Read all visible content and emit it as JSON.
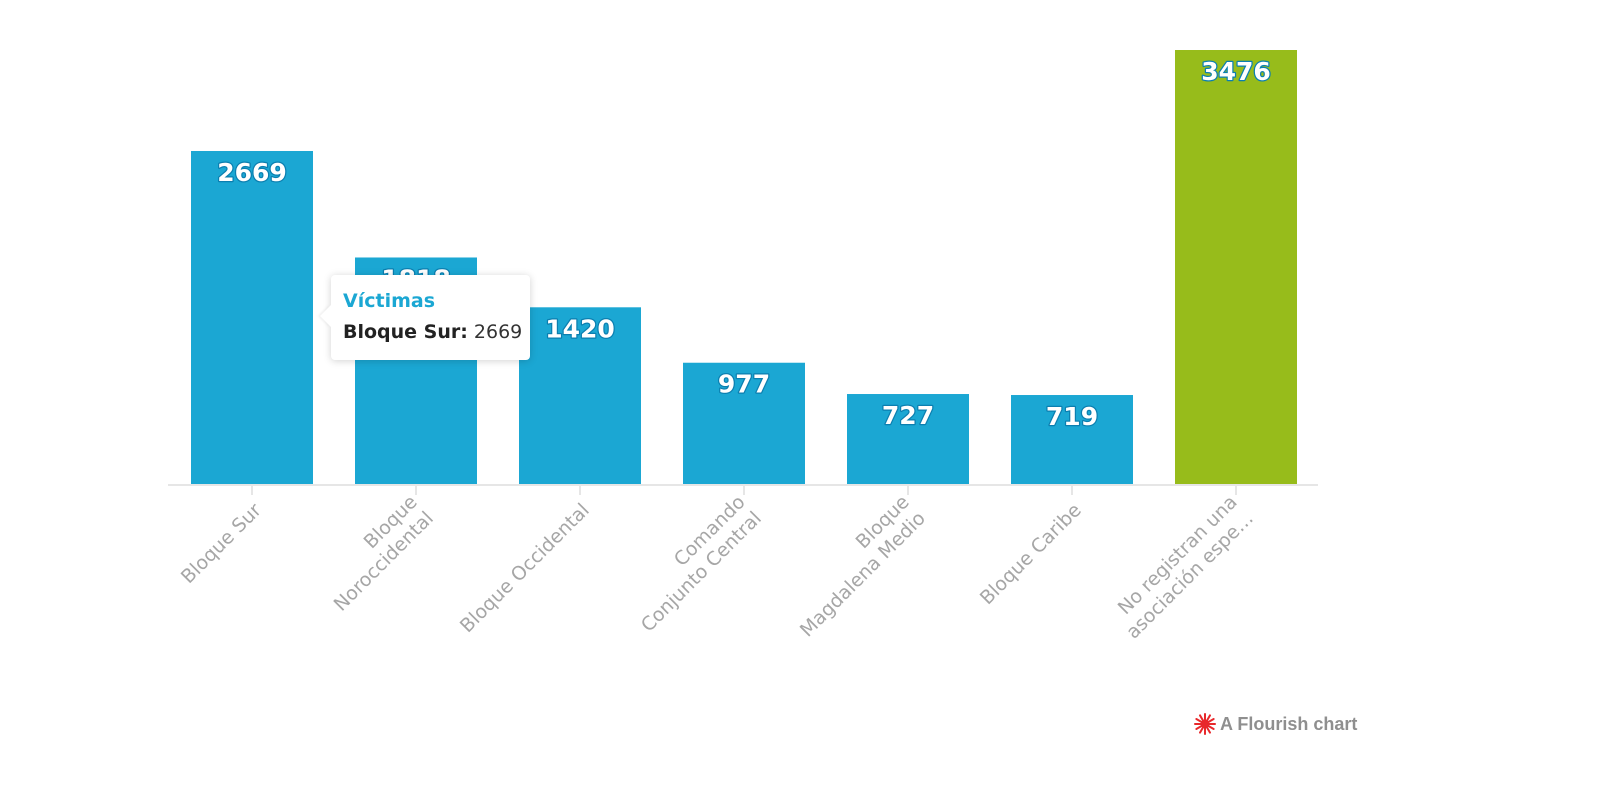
{
  "chart_data": {
    "type": "bar",
    "categories": [
      "Bloque Sur",
      "Bloque\nNoroccidental",
      "Bloque Occidental",
      "Comando\nConjunto Central",
      "Bloque\nMagdalena Medio",
      "Bloque Caribe",
      "No registran una\nasociación espe…"
    ],
    "series": [
      {
        "name": "Víctimas",
        "values": [
          2669,
          1818,
          1420,
          977,
          727,
          719,
          3476
        ],
        "colors": [
          "#1ba7d3",
          "#1ba7d3",
          "#1ba7d3",
          "#1ba7d3",
          "#1ba7d3",
          "#1ba7d3",
          "#97bc1b"
        ]
      }
    ],
    "ylim": [
      0,
      3476
    ],
    "grid": false,
    "data_labels": true
  },
  "tooltip": {
    "title": "Víctimas",
    "key": "Bloque Sur:",
    "value": "2669"
  },
  "credit": {
    "text": "A Flourish chart",
    "logo_color": "#e8282b"
  },
  "colors": {
    "bar": "#1ba7d3",
    "highlight": "#97bc1b",
    "axis": "#e6e6e6",
    "tick_label": "#a6a6a6"
  }
}
